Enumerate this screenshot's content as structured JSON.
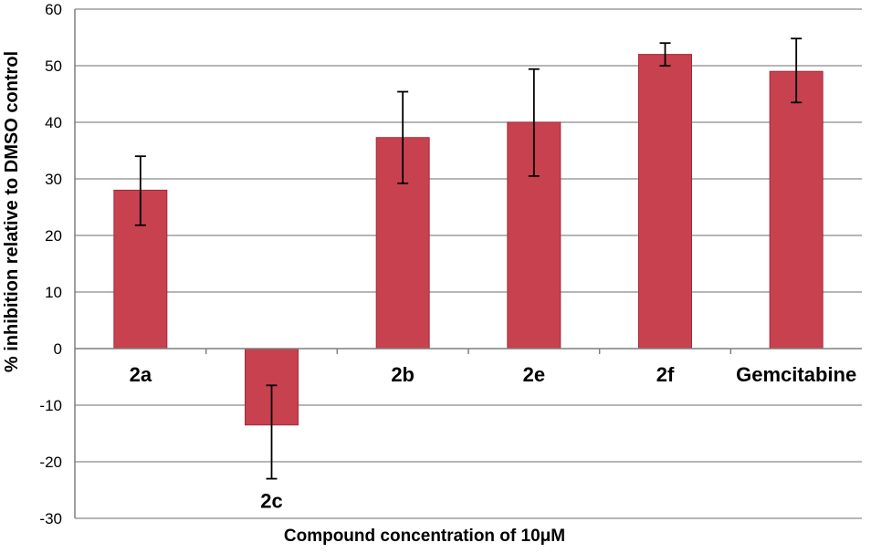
{
  "chart_data": {
    "type": "bar",
    "xlabel": "Compound concentration of 10μM",
    "ylabel": "% inhibition relative to DMSO control",
    "ylim": [
      -30,
      60
    ],
    "yticks": [
      60,
      50,
      40,
      30,
      20,
      10,
      0,
      -10,
      -20,
      -30
    ],
    "grid": true,
    "categories": [
      "2a",
      "2c",
      "2b",
      "2e",
      "2f",
      "Gemcitabine"
    ],
    "values": [
      28,
      -13.5,
      37.3,
      40,
      52,
      49
    ],
    "error_low": [
      21.8,
      -23,
      29.2,
      30.5,
      50,
      43.5
    ],
    "error_high": [
      34,
      -6.5,
      45.4,
      49.4,
      54,
      54.8
    ],
    "bar_color": "#c8414f",
    "bar_edge_color": "#a32a37",
    "grid_color": "#8a8a8a"
  }
}
